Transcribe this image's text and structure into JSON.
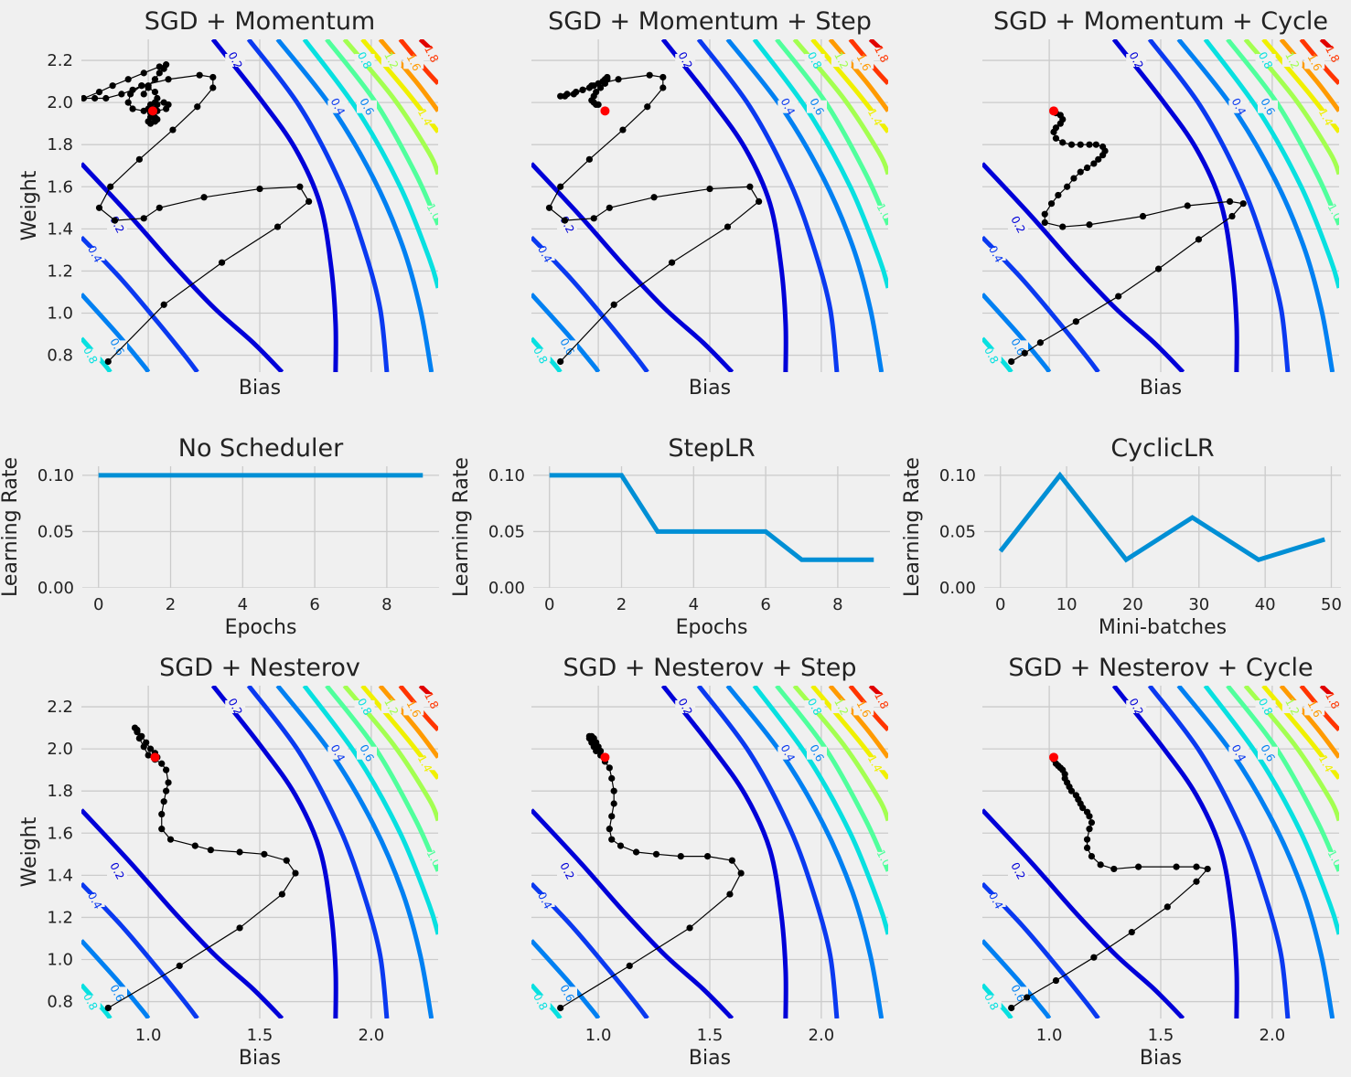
{
  "figure": {
    "background": "#f0f0f0",
    "plot_background": "#f0f0f0",
    "grid_color": "#cbcbcb",
    "line_color": "#008fd5"
  },
  "chart_data": [
    {
      "id": "p00",
      "type": "contour",
      "title": "SGD + Momentum",
      "xlabel": "Bias",
      "ylabel": "Weight",
      "show_x_ticks": false,
      "show_y_ticks": true,
      "xlim": [
        0.7,
        2.3
      ],
      "ylim": [
        0.72,
        2.3
      ],
      "x_ticks": [
        1.0,
        1.5,
        2.0
      ],
      "y_ticks": [
        0.8,
        1.0,
        1.2,
        1.4,
        1.6,
        1.8,
        2.0,
        2.2
      ],
      "grid": true,
      "contour_levels": [
        "0.2",
        "0.4",
        "0.6",
        "0.8",
        "1.0",
        "1.2",
        "1.4",
        "1.6",
        "1.8"
      ],
      "optimum": [
        1.02,
        1.96
      ],
      "path": [
        [
          0.82,
          0.77
        ],
        [
          1.07,
          1.04
        ],
        [
          1.33,
          1.24
        ],
        [
          1.58,
          1.41
        ],
        [
          1.72,
          1.53
        ],
        [
          1.68,
          1.6
        ],
        [
          1.5,
          1.59
        ],
        [
          1.25,
          1.55
        ],
        [
          1.05,
          1.5
        ],
        [
          0.98,
          1.45
        ],
        [
          0.85,
          1.44
        ],
        [
          0.78,
          1.5
        ],
        [
          0.83,
          1.6
        ],
        [
          0.96,
          1.73
        ],
        [
          1.11,
          1.87
        ],
        [
          1.22,
          1.98
        ],
        [
          1.29,
          2.07
        ],
        [
          1.29,
          2.12
        ],
        [
          1.23,
          2.13
        ],
        [
          1.09,
          2.11
        ],
        [
          0.97,
          2.08
        ],
        [
          0.92,
          2.04
        ],
        [
          0.91,
          2.0
        ],
        [
          0.93,
          1.97
        ],
        [
          0.98,
          1.96
        ],
        [
          1.04,
          1.96
        ],
        [
          1.08,
          1.97
        ],
        [
          1.09,
          1.99
        ],
        [
          1.07,
          2.0
        ],
        [
          1.03,
          2.0
        ],
        [
          1.01,
          1.99
        ],
        [
          1.0,
          1.97
        ],
        [
          1.01,
          1.95
        ],
        [
          1.03,
          1.93
        ],
        [
          1.04,
          1.92
        ],
        [
          1.03,
          1.91
        ],
        [
          1.01,
          1.9
        ],
        [
          1.0,
          1.91
        ],
        [
          1.01,
          1.93
        ],
        [
          1.02,
          1.95
        ],
        [
          1.03,
          1.97
        ],
        [
          1.04,
          1.99
        ],
        [
          1.04,
          2.02
        ],
        [
          1.03,
          2.05
        ],
        [
          1.0,
          2.07
        ],
        [
          0.97,
          2.08
        ],
        [
          0.93,
          2.06
        ],
        [
          0.88,
          2.04
        ],
        [
          0.81,
          2.02
        ],
        [
          0.76,
          2.02
        ],
        [
          0.71,
          2.02
        ],
        [
          0.78,
          2.05
        ],
        [
          0.84,
          2.08
        ],
        [
          0.91,
          2.11
        ],
        [
          0.98,
          2.14
        ],
        [
          1.05,
          2.17
        ],
        [
          1.08,
          2.18
        ],
        [
          1.07,
          2.16
        ],
        [
          1.05,
          2.14
        ],
        [
          1.03,
          2.11
        ],
        [
          1.0,
          2.08
        ],
        [
          0.98,
          2.04
        ]
      ]
    },
    {
      "id": "p01",
      "type": "contour",
      "title": "SGD + Momentum + Step",
      "xlabel": "Bias",
      "ylabel": "",
      "show_x_ticks": false,
      "show_y_ticks": false,
      "xlim": [
        0.7,
        2.3
      ],
      "ylim": [
        0.72,
        2.3
      ],
      "x_ticks": [
        1.0,
        1.5,
        2.0
      ],
      "y_ticks": [
        0.8,
        1.0,
        1.2,
        1.4,
        1.6,
        1.8,
        2.0,
        2.2
      ],
      "grid": true,
      "contour_levels": [
        "0.2",
        "0.4",
        "0.6",
        "0.8",
        "1.0",
        "1.2",
        "1.4",
        "1.6",
        "1.8"
      ],
      "optimum": [
        1.03,
        1.96
      ],
      "path": [
        [
          0.83,
          0.77
        ],
        [
          1.07,
          1.04
        ],
        [
          1.33,
          1.24
        ],
        [
          1.58,
          1.41
        ],
        [
          1.72,
          1.53
        ],
        [
          1.68,
          1.6
        ],
        [
          1.5,
          1.59
        ],
        [
          1.25,
          1.55
        ],
        [
          1.05,
          1.5
        ],
        [
          0.98,
          1.45
        ],
        [
          0.85,
          1.44
        ],
        [
          0.78,
          1.5
        ],
        [
          0.83,
          1.6
        ],
        [
          0.96,
          1.73
        ],
        [
          1.11,
          1.87
        ],
        [
          1.22,
          1.98
        ],
        [
          1.29,
          2.07
        ],
        [
          1.29,
          2.12
        ],
        [
          1.23,
          2.13
        ],
        [
          1.09,
          2.11
        ],
        [
          0.97,
          2.08
        ],
        [
          0.93,
          2.06
        ],
        [
          0.89,
          2.04
        ],
        [
          0.85,
          2.03
        ],
        [
          0.83,
          2.03
        ],
        [
          0.86,
          2.04
        ],
        [
          0.9,
          2.05
        ],
        [
          0.93,
          2.06
        ],
        [
          0.96,
          2.07
        ],
        [
          0.98,
          2.08
        ],
        [
          1.0,
          2.09
        ],
        [
          1.02,
          2.1
        ],
        [
          1.03,
          2.11
        ],
        [
          1.04,
          2.12
        ],
        [
          1.04,
          2.11
        ],
        [
          1.03,
          2.09
        ],
        [
          1.01,
          2.07
        ],
        [
          0.99,
          2.05
        ],
        [
          0.98,
          2.03
        ],
        [
          0.97,
          2.01
        ],
        [
          0.98,
          2.0
        ],
        [
          0.99,
          1.99
        ],
        [
          1.0,
          1.99
        ]
      ]
    },
    {
      "id": "p02",
      "type": "contour",
      "title": "SGD + Momentum + Cycle",
      "xlabel": "Bias",
      "ylabel": "",
      "show_x_ticks": false,
      "show_y_ticks": false,
      "xlim": [
        0.7,
        2.3
      ],
      "ylim": [
        0.72,
        2.3
      ],
      "x_ticks": [
        1.0,
        1.5,
        2.0
      ],
      "y_ticks": [
        0.8,
        1.0,
        1.2,
        1.4,
        1.6,
        1.8,
        2.0,
        2.2
      ],
      "grid": true,
      "contour_levels": [
        "0.2",
        "0.4",
        "0.6",
        "0.8",
        "1.0",
        "1.2",
        "1.4",
        "1.6",
        "1.8"
      ],
      "optimum": [
        1.02,
        1.96
      ],
      "path": [
        [
          0.83,
          0.77
        ],
        [
          0.89,
          0.81
        ],
        [
          0.96,
          0.86
        ],
        [
          1.12,
          0.96
        ],
        [
          1.31,
          1.08
        ],
        [
          1.49,
          1.21
        ],
        [
          1.67,
          1.35
        ],
        [
          1.82,
          1.46
        ],
        [
          1.87,
          1.52
        ],
        [
          1.81,
          1.53
        ],
        [
          1.62,
          1.51
        ],
        [
          1.42,
          1.46
        ],
        [
          1.18,
          1.42
        ],
        [
          1.06,
          1.41
        ],
        [
          0.98,
          1.43
        ],
        [
          0.98,
          1.47
        ],
        [
          1.01,
          1.52
        ],
        [
          1.04,
          1.56
        ],
        [
          1.08,
          1.6
        ],
        [
          1.11,
          1.64
        ],
        [
          1.14,
          1.67
        ],
        [
          1.17,
          1.69
        ],
        [
          1.2,
          1.71
        ],
        [
          1.22,
          1.73
        ],
        [
          1.24,
          1.75
        ],
        [
          1.25,
          1.77
        ],
        [
          1.24,
          1.79
        ],
        [
          1.21,
          1.8
        ],
        [
          1.18,
          1.8
        ],
        [
          1.14,
          1.8
        ],
        [
          1.1,
          1.8
        ],
        [
          1.06,
          1.81
        ],
        [
          1.03,
          1.83
        ],
        [
          1.02,
          1.86
        ],
        [
          1.03,
          1.88
        ],
        [
          1.05,
          1.9
        ],
        [
          1.06,
          1.92
        ],
        [
          1.05,
          1.94
        ],
        [
          1.03,
          1.95
        ],
        [
          1.02,
          1.96
        ]
      ]
    },
    {
      "id": "p10",
      "type": "line",
      "title": "No Scheduler",
      "xlabel": "Epochs",
      "ylabel": "Learning Rate",
      "xlim": [
        -0.45,
        9.45
      ],
      "ylim": [
        0,
        0.108
      ],
      "x_ticks": [
        0,
        2,
        4,
        6,
        8
      ],
      "y_ticks": [
        0.0,
        0.05,
        0.1
      ],
      "y_tick_labels": [
        "0.00",
        "0.05",
        "0.10"
      ],
      "grid": true,
      "x": [
        0,
        1,
        2,
        3,
        4,
        5,
        6,
        7,
        8,
        9
      ],
      "y": [
        0.1,
        0.1,
        0.1,
        0.1,
        0.1,
        0.1,
        0.1,
        0.1,
        0.1,
        0.1
      ]
    },
    {
      "id": "p11",
      "type": "line",
      "title": "StepLR",
      "xlabel": "Epochs",
      "ylabel": "Learning Rate",
      "xlim": [
        -0.45,
        9.45
      ],
      "ylim": [
        0,
        0.108
      ],
      "x_ticks": [
        0,
        2,
        4,
        6,
        8
      ],
      "y_ticks": [
        0.0,
        0.05,
        0.1
      ],
      "y_tick_labels": [
        "0.00",
        "0.05",
        "0.10"
      ],
      "grid": true,
      "x": [
        0,
        1,
        2,
        3,
        4,
        5,
        6,
        7,
        8,
        9
      ],
      "y": [
        0.1,
        0.1,
        0.1,
        0.05,
        0.05,
        0.05,
        0.05,
        0.025,
        0.025,
        0.025
      ]
    },
    {
      "id": "p12",
      "type": "line",
      "title": "CyclicLR",
      "xlabel": "Mini-batches",
      "ylabel": "Learning Rate",
      "xlim": [
        -2.45,
        51.45
      ],
      "ylim": [
        0,
        0.108
      ],
      "x_ticks": [
        0,
        10,
        20,
        30,
        40,
        50
      ],
      "y_ticks": [
        0.0,
        0.05,
        0.1
      ],
      "y_tick_labels": [
        "0.00",
        "0.05",
        "0.10"
      ],
      "grid": true,
      "x": [
        0,
        9,
        19,
        29,
        39,
        49
      ],
      "y": [
        0.0325,
        0.1,
        0.025,
        0.0625,
        0.025,
        0.043
      ]
    },
    {
      "id": "p20",
      "type": "contour",
      "title": "SGD + Nesterov",
      "xlabel": "Bias",
      "ylabel": "Weight",
      "show_x_ticks": true,
      "show_y_ticks": true,
      "xlim": [
        0.7,
        2.3
      ],
      "ylim": [
        0.72,
        2.3
      ],
      "x_ticks": [
        1.0,
        1.5,
        2.0
      ],
      "y_ticks": [
        0.8,
        1.0,
        1.2,
        1.4,
        1.6,
        1.8,
        2.0,
        2.2
      ],
      "grid": true,
      "contour_levels": [
        "0.2",
        "0.4",
        "0.6",
        "0.8",
        "1.0",
        "1.2",
        "1.4",
        "1.6",
        "1.8"
      ],
      "optimum": [
        1.03,
        1.96
      ],
      "path": [
        [
          0.82,
          0.77
        ],
        [
          1.14,
          0.97
        ],
        [
          1.41,
          1.15
        ],
        [
          1.6,
          1.31
        ],
        [
          1.66,
          1.41
        ],
        [
          1.62,
          1.47
        ],
        [
          1.52,
          1.5
        ],
        [
          1.41,
          1.51
        ],
        [
          1.28,
          1.52
        ],
        [
          1.21,
          1.54
        ],
        [
          1.1,
          1.57
        ],
        [
          1.06,
          1.62
        ],
        [
          1.06,
          1.69
        ],
        [
          1.07,
          1.75
        ],
        [
          1.08,
          1.8
        ],
        [
          1.09,
          1.84
        ],
        [
          1.08,
          1.9
        ],
        [
          1.06,
          1.93
        ],
        [
          1.03,
          1.95
        ],
        [
          1.0,
          1.97
        ],
        [
          0.98,
          2.01
        ],
        [
          0.96,
          2.05
        ],
        [
          0.95,
          2.08
        ],
        [
          0.94,
          2.1
        ],
        [
          0.95,
          2.09
        ],
        [
          0.97,
          2.06
        ],
        [
          0.99,
          2.03
        ],
        [
          1.01,
          2.0
        ],
        [
          1.03,
          1.98
        ],
        [
          1.04,
          1.96
        ],
        [
          1.03,
          1.95
        ]
      ]
    },
    {
      "id": "p21",
      "type": "contour",
      "title": "SGD + Nesterov + Step",
      "xlabel": "Bias",
      "ylabel": "",
      "show_x_ticks": true,
      "show_y_ticks": false,
      "xlim": [
        0.7,
        2.3
      ],
      "ylim": [
        0.72,
        2.3
      ],
      "x_ticks": [
        1.0,
        1.5,
        2.0
      ],
      "y_ticks": [
        0.8,
        1.0,
        1.2,
        1.4,
        1.6,
        1.8,
        2.0,
        2.2
      ],
      "grid": true,
      "contour_levels": [
        "0.2",
        "0.4",
        "0.6",
        "0.8",
        "1.0",
        "1.2",
        "1.4",
        "1.6",
        "1.8"
      ],
      "optimum": [
        1.03,
        1.96
      ],
      "path": [
        [
          0.83,
          0.77
        ],
        [
          1.14,
          0.97
        ],
        [
          1.41,
          1.15
        ],
        [
          1.59,
          1.31
        ],
        [
          1.64,
          1.41
        ],
        [
          1.6,
          1.47
        ],
        [
          1.49,
          1.49
        ],
        [
          1.37,
          1.49
        ],
        [
          1.26,
          1.5
        ],
        [
          1.17,
          1.51
        ],
        [
          1.1,
          1.54
        ],
        [
          1.06,
          1.57
        ],
        [
          1.05,
          1.62
        ],
        [
          1.06,
          1.68
        ],
        [
          1.07,
          1.74
        ],
        [
          1.07,
          1.8
        ],
        [
          1.06,
          1.86
        ],
        [
          1.05,
          1.91
        ],
        [
          1.03,
          1.94
        ],
        [
          1.01,
          1.97
        ],
        [
          0.99,
          1.99
        ],
        [
          0.98,
          2.01
        ],
        [
          0.97,
          2.03
        ],
        [
          0.96,
          2.05
        ],
        [
          0.96,
          2.06
        ],
        [
          0.97,
          2.06
        ],
        [
          0.98,
          2.05
        ],
        [
          0.99,
          2.03
        ],
        [
          1.0,
          2.01
        ],
        [
          1.01,
          1.99
        ]
      ]
    },
    {
      "id": "p22",
      "type": "contour",
      "title": "SGD + Nesterov + Cycle",
      "xlabel": "Bias",
      "ylabel": "",
      "show_x_ticks": true,
      "show_y_ticks": false,
      "xlim": [
        0.7,
        2.3
      ],
      "ylim": [
        0.72,
        2.3
      ],
      "x_ticks": [
        1.0,
        1.5,
        2.0
      ],
      "y_ticks": [
        0.8,
        1.0,
        1.2,
        1.4,
        1.6,
        1.8,
        2.0,
        2.2
      ],
      "grid": true,
      "contour_levels": [
        "0.2",
        "0.4",
        "0.6",
        "0.8",
        "1.0",
        "1.2",
        "1.4",
        "1.6",
        "1.8"
      ],
      "optimum": [
        1.02,
        1.96
      ],
      "path": [
        [
          0.83,
          0.77
        ],
        [
          0.9,
          0.82
        ],
        [
          1.03,
          0.9
        ],
        [
          1.2,
          1.01
        ],
        [
          1.37,
          1.13
        ],
        [
          1.53,
          1.25
        ],
        [
          1.66,
          1.37
        ],
        [
          1.71,
          1.43
        ],
        [
          1.66,
          1.44
        ],
        [
          1.57,
          1.44
        ],
        [
          1.4,
          1.44
        ],
        [
          1.29,
          1.43
        ],
        [
          1.23,
          1.45
        ],
        [
          1.19,
          1.49
        ],
        [
          1.17,
          1.53
        ],
        [
          1.17,
          1.57
        ],
        [
          1.18,
          1.62
        ],
        [
          1.19,
          1.65
        ],
        [
          1.18,
          1.68
        ],
        [
          1.17,
          1.7
        ],
        [
          1.15,
          1.72
        ],
        [
          1.14,
          1.74
        ],
        [
          1.13,
          1.76
        ],
        [
          1.12,
          1.78
        ],
        [
          1.1,
          1.8
        ],
        [
          1.09,
          1.82
        ],
        [
          1.08,
          1.84
        ],
        [
          1.07,
          1.86
        ],
        [
          1.07,
          1.88
        ],
        [
          1.06,
          1.9
        ],
        [
          1.05,
          1.91
        ],
        [
          1.04,
          1.92
        ],
        [
          1.03,
          1.93
        ],
        [
          1.02,
          1.95
        ],
        [
          1.02,
          1.96
        ]
      ]
    }
  ]
}
